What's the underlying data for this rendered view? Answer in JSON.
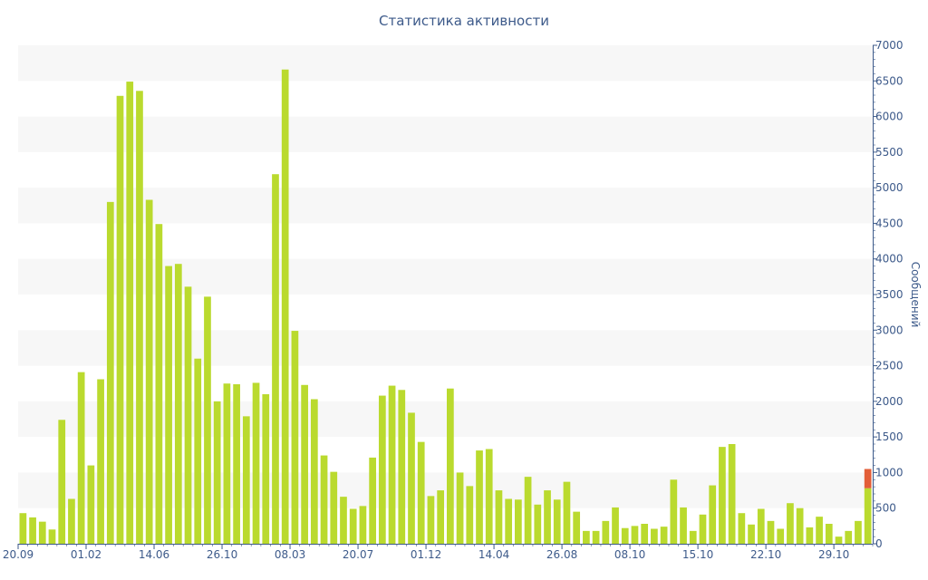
{
  "chart_data": {
    "type": "bar",
    "title": "Статистика активности",
    "xlabel": "",
    "ylabel": "Сообщений",
    "ylim": [
      0,
      7000
    ],
    "y_ticks": [
      0,
      500,
      1000,
      1500,
      2000,
      2500,
      3000,
      3500,
      4000,
      4500,
      5000,
      5500,
      6000,
      6500,
      7000
    ],
    "x_tick_labels": [
      {
        "index": 0,
        "label": "20.09"
      },
      {
        "index": 7,
        "label": "01.02"
      },
      {
        "index": 14,
        "label": "14.06"
      },
      {
        "index": 21,
        "label": "26.10"
      },
      {
        "index": 28,
        "label": "08.03"
      },
      {
        "index": 35,
        "label": "20.07"
      },
      {
        "index": 42,
        "label": "01.12"
      },
      {
        "index": 49,
        "label": "14.04"
      },
      {
        "index": 56,
        "label": "26.08"
      },
      {
        "index": 63,
        "label": "08.10"
      },
      {
        "index": 70,
        "label": "15.10"
      },
      {
        "index": 77,
        "label": "22.10"
      },
      {
        "index": 84,
        "label": "29.10"
      }
    ],
    "axis_position": "right",
    "grid": "alternating horizontal bands",
    "colors": {
      "bar": "#bada2e",
      "highlight": "#e35e38",
      "axis": "#3d5a8a",
      "band": "#f7f7f7"
    },
    "values": [
      430,
      370,
      310,
      200,
      1740,
      630,
      2410,
      1100,
      2310,
      4800,
      6290,
      6490,
      6360,
      4830,
      4490,
      3900,
      3930,
      3610,
      2600,
      3470,
      2000,
      2250,
      2240,
      1790,
      2260,
      2100,
      5190,
      6660,
      2990,
      2230,
      2030,
      1240,
      1010,
      660,
      490,
      530,
      1210,
      2080,
      2220,
      2160,
      1840,
      1430,
      670,
      750,
      2180,
      1000,
      810,
      1310,
      1330,
      750,
      630,
      620,
      940,
      550,
      750,
      620,
      870,
      450,
      180,
      180,
      320,
      510,
      220,
      250,
      280,
      210,
      240,
      900,
      510,
      180,
      410,
      820,
      1360,
      1400,
      430,
      270,
      490,
      320,
      210,
      570,
      500,
      230,
      380,
      280,
      100,
      180,
      320,
      780
    ],
    "highlight_last": 270
  }
}
